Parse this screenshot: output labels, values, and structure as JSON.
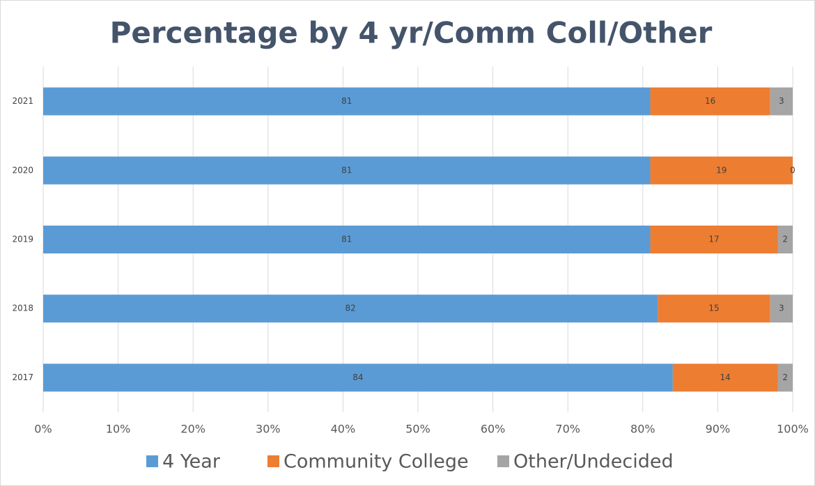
{
  "chart_data": {
    "type": "stacked_bar_horizontal",
    "title": "Percentage by 4 yr/Comm Coll/Other",
    "categories": [
      "2021",
      "2020",
      "2019",
      "2018",
      "2017"
    ],
    "series": [
      {
        "name": "4 Year",
        "color": "#5b9bd5",
        "values": [
          81,
          81,
          81,
          82,
          84
        ]
      },
      {
        "name": "Community College",
        "color": "#ed7d31",
        "values": [
          16,
          19,
          17,
          15,
          14
        ]
      },
      {
        "name": "Other/Undecided",
        "color": "#a5a5a5",
        "values": [
          3,
          0,
          2,
          3,
          2
        ]
      }
    ],
    "xlim": [
      0,
      100
    ],
    "xticks": [
      {
        "value": 0,
        "label": "0%"
      },
      {
        "value": 10,
        "label": "10%"
      },
      {
        "value": 20,
        "label": "20%"
      },
      {
        "value": 30,
        "label": "30%"
      },
      {
        "value": 40,
        "label": "40%"
      },
      {
        "value": 50,
        "label": "50%"
      },
      {
        "value": 60,
        "label": "60%"
      },
      {
        "value": 70,
        "label": "70%"
      },
      {
        "value": 80,
        "label": "80%"
      },
      {
        "value": 90,
        "label": "90%"
      },
      {
        "value": 100,
        "label": "100%"
      }
    ],
    "grid": true,
    "legend": "bottom"
  }
}
